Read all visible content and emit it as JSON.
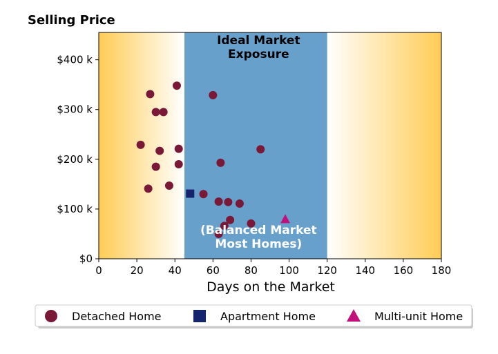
{
  "chart_data": {
    "type": "scatter",
    "title": "Selling Price",
    "xlabel": "Days on the Market",
    "ylabel": "",
    "xlim": [
      0,
      180
    ],
    "ylim": [
      0,
      455000
    ],
    "x_ticks": [
      0,
      20,
      40,
      60,
      80,
      100,
      120,
      140,
      160,
      180
    ],
    "x_tick_labels": [
      "0",
      "20",
      "40",
      "60",
      "80",
      "100",
      "120",
      "140",
      "160",
      "180"
    ],
    "y_ticks": [
      0,
      100000,
      200000,
      300000,
      400000
    ],
    "y_tick_labels": [
      "$0",
      "$100 k",
      "$200 k",
      "$300 k",
      "$400 k"
    ],
    "band": {
      "x_range": [
        45,
        120
      ],
      "top_label_line1": "Ideal Market",
      "top_label_line2": "Exposure",
      "bottom_label_line1": "(Balanced Market",
      "bottom_label_line2": "Most Homes)",
      "color": "#68a0cc"
    },
    "background_gradient": {
      "edge_color": "#ffcc55",
      "center_color": "#ffffff"
    },
    "grid": false,
    "legend_position": "bottom",
    "series": [
      {
        "name": "Detached Home",
        "marker": "circle",
        "color": "#7a1838",
        "points": [
          [
            27,
            331000
          ],
          [
            41,
            348000
          ],
          [
            60,
            329000
          ],
          [
            30,
            295000
          ],
          [
            34,
            295000
          ],
          [
            22,
            229000
          ],
          [
            32,
            217000
          ],
          [
            42,
            221000
          ],
          [
            85,
            220000
          ],
          [
            64,
            193000
          ],
          [
            30,
            185000
          ],
          [
            42,
            190000
          ],
          [
            26,
            141000
          ],
          [
            37,
            147000
          ],
          [
            55,
            130000
          ],
          [
            63,
            115000
          ],
          [
            68,
            114000
          ],
          [
            74,
            111000
          ],
          [
            69,
            78000
          ],
          [
            66,
            66000
          ],
          [
            80,
            71000
          ],
          [
            63,
            50000
          ]
        ]
      },
      {
        "name": "Apartment Home",
        "marker": "square",
        "color": "#14256e",
        "points": [
          [
            48,
            131000
          ]
        ]
      },
      {
        "name": "Multi-unit Home",
        "marker": "triangle",
        "color": "#c0127a",
        "points": [
          [
            98,
            80000
          ]
        ]
      }
    ]
  }
}
